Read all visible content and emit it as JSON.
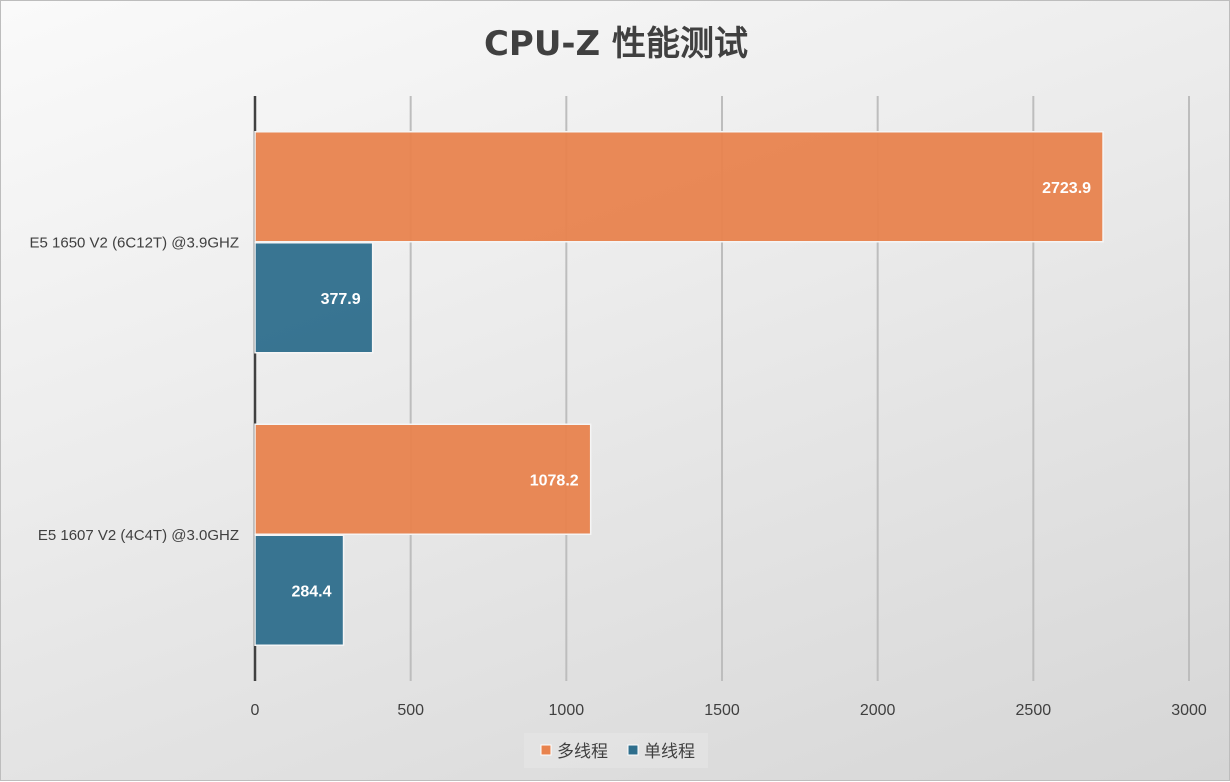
{
  "chart_data": {
    "type": "bar",
    "orientation": "horizontal",
    "title": "CPU-Z 性能测试",
    "categories": [
      "E5 1650 V2 (6C12T) @3.9GHZ",
      "E5 1607 V2 (4C4T) @3.0GHZ"
    ],
    "series": [
      {
        "name": "多线程",
        "values": [
          2723.9,
          1078.2
        ],
        "color": "#E8834E"
      },
      {
        "name": "单线程",
        "values": [
          377.9,
          284.4
        ],
        "color": "#2E6E8C"
      }
    ],
    "xlim": [
      0,
      3000
    ],
    "xticks": [
      0,
      500,
      1000,
      1500,
      2000,
      2500,
      3000
    ],
    "grid": true,
    "legend": "bottom",
    "xlabel": "",
    "ylabel": ""
  }
}
